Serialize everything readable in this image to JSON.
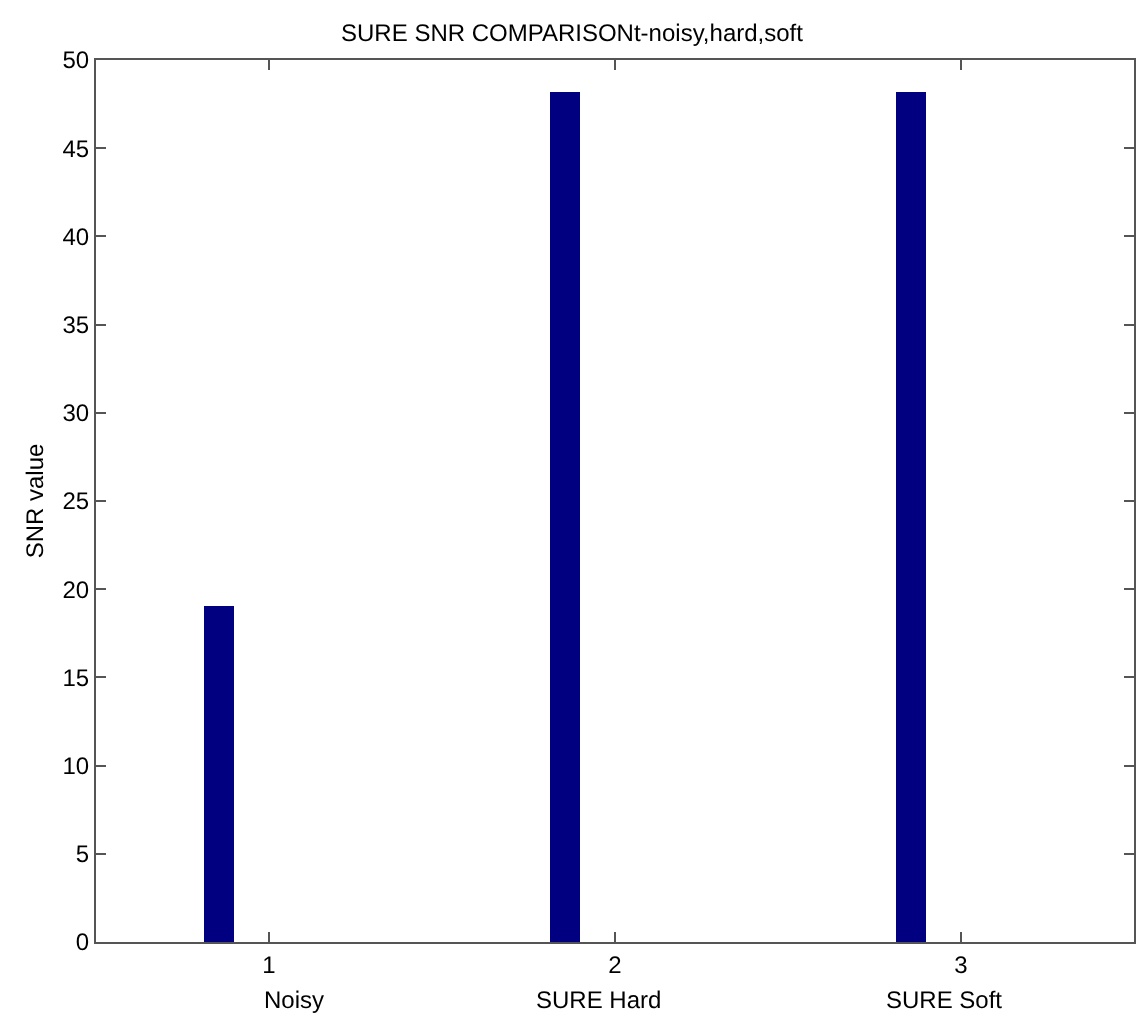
{
  "chart_data": {
    "type": "bar",
    "title": "SURE SNR COMPARISONt-noisy,hard,soft",
    "ylabel": "SNR value",
    "x": [
      0.857,
      1.857,
      2.857
    ],
    "series": [
      {
        "color": "#000080",
        "values": [
          19,
          48.2,
          48.2
        ]
      }
    ],
    "xlim": [
      0.5,
      3.5
    ],
    "xticks": [
      1,
      2,
      3
    ],
    "ylim": [
      0,
      50
    ],
    "yticks": [
      0,
      5,
      10,
      15,
      20,
      25,
      30,
      35,
      40,
      45,
      50
    ],
    "annotations": [
      "Noisy",
      "SURE Hard",
      "SURE Soft"
    ]
  }
}
